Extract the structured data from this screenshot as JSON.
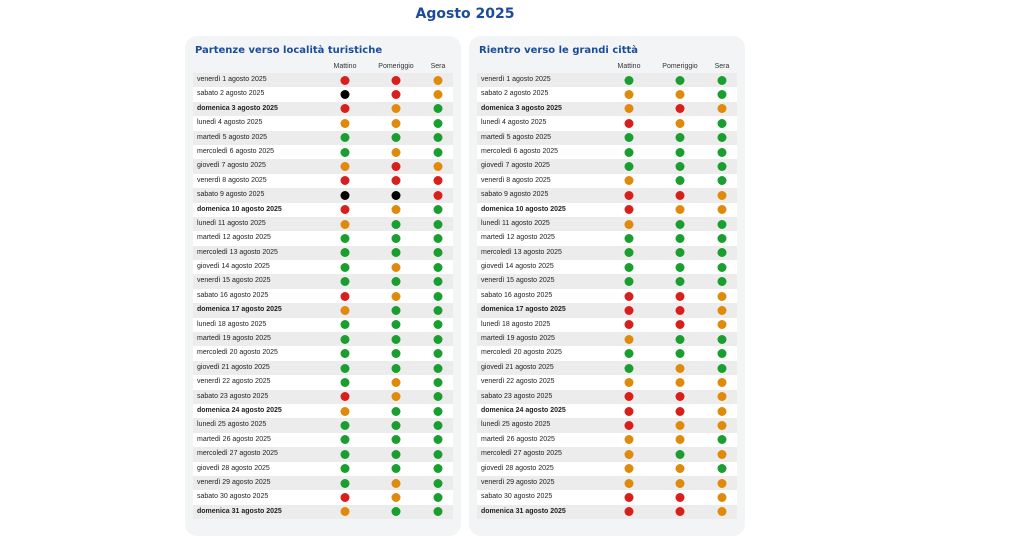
{
  "title": "Agosto 2025",
  "colors": {
    "green": "#1a9e2f",
    "orange": "#e08a0b",
    "red": "#d81f1b",
    "black": "#000000",
    "title": "#1a4c9a"
  },
  "columns": [
    "Mattino",
    "Pomeriggio",
    "Sera"
  ],
  "tables": [
    {
      "title": "Partenze verso località turistiche",
      "rows": [
        {
          "date": "venerdì 1 agosto 2025",
          "bold": false,
          "levels": [
            "red",
            "red",
            "orange"
          ]
        },
        {
          "date": "sabato 2 agosto 2025",
          "bold": false,
          "levels": [
            "black",
            "red",
            "orange"
          ]
        },
        {
          "date": "domenica 3 agosto 2025",
          "bold": true,
          "levels": [
            "red",
            "orange",
            "green"
          ]
        },
        {
          "date": "lunedì 4 agosto 2025",
          "bold": false,
          "levels": [
            "orange",
            "orange",
            "green"
          ]
        },
        {
          "date": "martedì 5 agosto 2025",
          "bold": false,
          "levels": [
            "green",
            "green",
            "green"
          ]
        },
        {
          "date": "mercoledì 6 agosto 2025",
          "bold": false,
          "levels": [
            "green",
            "orange",
            "green"
          ]
        },
        {
          "date": "giovedì 7 agosto 2025",
          "bold": false,
          "levels": [
            "orange",
            "red",
            "orange"
          ]
        },
        {
          "date": "venerdì 8 agosto 2025",
          "bold": false,
          "levels": [
            "red",
            "red",
            "red"
          ]
        },
        {
          "date": "sabato 9 agosto 2025",
          "bold": false,
          "levels": [
            "black",
            "black",
            "red"
          ]
        },
        {
          "date": "domenica 10 agosto 2025",
          "bold": true,
          "levels": [
            "red",
            "orange",
            "green"
          ]
        },
        {
          "date": "lunedì 11 agosto 2025",
          "bold": false,
          "levels": [
            "orange",
            "green",
            "green"
          ]
        },
        {
          "date": "martedì 12 agosto 2025",
          "bold": false,
          "levels": [
            "green",
            "green",
            "green"
          ]
        },
        {
          "date": "mercoledì 13 agosto 2025",
          "bold": false,
          "levels": [
            "green",
            "green",
            "green"
          ]
        },
        {
          "date": "giovedì 14 agosto 2025",
          "bold": false,
          "levels": [
            "green",
            "orange",
            "green"
          ]
        },
        {
          "date": "venerdì 15 agosto 2025",
          "bold": false,
          "levels": [
            "green",
            "green",
            "green"
          ]
        },
        {
          "date": "sabato 16 agosto 2025",
          "bold": false,
          "levels": [
            "red",
            "orange",
            "green"
          ]
        },
        {
          "date": "domenica 17 agosto 2025",
          "bold": true,
          "levels": [
            "orange",
            "green",
            "green"
          ]
        },
        {
          "date": "lunedì 18 agosto 2025",
          "bold": false,
          "levels": [
            "green",
            "green",
            "green"
          ]
        },
        {
          "date": "martedì 19 agosto 2025",
          "bold": false,
          "levels": [
            "green",
            "green",
            "green"
          ]
        },
        {
          "date": "mercoledì 20 agosto 2025",
          "bold": false,
          "levels": [
            "green",
            "green",
            "green"
          ]
        },
        {
          "date": "giovedì 21 agosto 2025",
          "bold": false,
          "levels": [
            "green",
            "green",
            "green"
          ]
        },
        {
          "date": "venerdì 22 agosto 2025",
          "bold": false,
          "levels": [
            "green",
            "orange",
            "green"
          ]
        },
        {
          "date": "sabato 23 agosto 2025",
          "bold": false,
          "levels": [
            "red",
            "orange",
            "green"
          ]
        },
        {
          "date": "domenica 24 agosto 2025",
          "bold": true,
          "levels": [
            "orange",
            "green",
            "green"
          ]
        },
        {
          "date": "lunedì 25 agosto 2025",
          "bold": false,
          "levels": [
            "green",
            "green",
            "green"
          ]
        },
        {
          "date": "martedì 26 agosto 2025",
          "bold": false,
          "levels": [
            "green",
            "green",
            "green"
          ]
        },
        {
          "date": "mercoledì 27 agosto 2025",
          "bold": false,
          "levels": [
            "green",
            "green",
            "green"
          ]
        },
        {
          "date": "giovedì 28 agosto 2025",
          "bold": false,
          "levels": [
            "green",
            "green",
            "green"
          ]
        },
        {
          "date": "venerdì 29 agosto 2025",
          "bold": false,
          "levels": [
            "green",
            "orange",
            "green"
          ]
        },
        {
          "date": "sabato 30 agosto 2025",
          "bold": false,
          "levels": [
            "red",
            "orange",
            "green"
          ]
        },
        {
          "date": "domenica 31 agosto 2025",
          "bold": true,
          "levels": [
            "orange",
            "green",
            "green"
          ]
        }
      ]
    },
    {
      "title": "Rientro verso le grandi città",
      "rows": [
        {
          "date": "venerdì 1 agosto 2025",
          "bold": false,
          "levels": [
            "green",
            "green",
            "green"
          ]
        },
        {
          "date": "sabato 2 agosto 2025",
          "bold": false,
          "levels": [
            "orange",
            "orange",
            "green"
          ]
        },
        {
          "date": "domenica 3 agosto 2025",
          "bold": true,
          "levels": [
            "orange",
            "red",
            "orange"
          ]
        },
        {
          "date": "lunedì 4 agosto 2025",
          "bold": false,
          "levels": [
            "red",
            "orange",
            "green"
          ]
        },
        {
          "date": "martedì 5 agosto 2025",
          "bold": false,
          "levels": [
            "green",
            "green",
            "green"
          ]
        },
        {
          "date": "mercoledì 6 agosto 2025",
          "bold": false,
          "levels": [
            "green",
            "green",
            "green"
          ]
        },
        {
          "date": "giovedì 7 agosto 2025",
          "bold": false,
          "levels": [
            "green",
            "green",
            "green"
          ]
        },
        {
          "date": "venerdì 8 agosto 2025",
          "bold": false,
          "levels": [
            "orange",
            "green",
            "green"
          ]
        },
        {
          "date": "sabato 9 agosto 2025",
          "bold": false,
          "levels": [
            "red",
            "red",
            "orange"
          ]
        },
        {
          "date": "domenica 10 agosto 2025",
          "bold": true,
          "levels": [
            "red",
            "orange",
            "orange"
          ]
        },
        {
          "date": "lunedì 11 agosto 2025",
          "bold": false,
          "levels": [
            "orange",
            "green",
            "green"
          ]
        },
        {
          "date": "martedì 12 agosto 2025",
          "bold": false,
          "levels": [
            "green",
            "green",
            "green"
          ]
        },
        {
          "date": "mercoledì 13 agosto 2025",
          "bold": false,
          "levels": [
            "green",
            "green",
            "green"
          ]
        },
        {
          "date": "giovedì 14 agosto 2025",
          "bold": false,
          "levels": [
            "green",
            "green",
            "green"
          ]
        },
        {
          "date": "venerdì 15 agosto 2025",
          "bold": false,
          "levels": [
            "green",
            "green",
            "green"
          ]
        },
        {
          "date": "sabato 16 agosto 2025",
          "bold": false,
          "levels": [
            "red",
            "red",
            "orange"
          ]
        },
        {
          "date": "domenica 17 agosto 2025",
          "bold": true,
          "levels": [
            "red",
            "red",
            "orange"
          ]
        },
        {
          "date": "lunedì 18 agosto 2025",
          "bold": false,
          "levels": [
            "red",
            "red",
            "orange"
          ]
        },
        {
          "date": "martedì 19 agosto 2025",
          "bold": false,
          "levels": [
            "orange",
            "green",
            "green"
          ]
        },
        {
          "date": "mercoledì 20 agosto 2025",
          "bold": false,
          "levels": [
            "green",
            "green",
            "green"
          ]
        },
        {
          "date": "giovedì 21 agosto 2025",
          "bold": false,
          "levels": [
            "green",
            "orange",
            "green"
          ]
        },
        {
          "date": "venerdì 22 agosto 2025",
          "bold": false,
          "levels": [
            "orange",
            "orange",
            "orange"
          ]
        },
        {
          "date": "sabato 23 agosto 2025",
          "bold": false,
          "levels": [
            "red",
            "red",
            "orange"
          ]
        },
        {
          "date": "domenica 24 agosto 2025",
          "bold": true,
          "levels": [
            "red",
            "red",
            "orange"
          ]
        },
        {
          "date": "lunedì 25 agosto 2025",
          "bold": false,
          "levels": [
            "red",
            "orange",
            "orange"
          ]
        },
        {
          "date": "martedì 26 agosto 2025",
          "bold": false,
          "levels": [
            "orange",
            "orange",
            "green"
          ]
        },
        {
          "date": "mercoledì 27 agosto 2025",
          "bold": false,
          "levels": [
            "orange",
            "green",
            "orange"
          ]
        },
        {
          "date": "giovedì 28 agosto 2025",
          "bold": false,
          "levels": [
            "orange",
            "orange",
            "green"
          ]
        },
        {
          "date": "venerdì 29 agosto 2025",
          "bold": false,
          "levels": [
            "orange",
            "orange",
            "orange"
          ]
        },
        {
          "date": "sabato 30 agosto 2025",
          "bold": false,
          "levels": [
            "red",
            "red",
            "orange"
          ]
        },
        {
          "date": "domenica 31 agosto 2025",
          "bold": true,
          "levels": [
            "red",
            "red",
            "orange"
          ]
        }
      ]
    }
  ]
}
